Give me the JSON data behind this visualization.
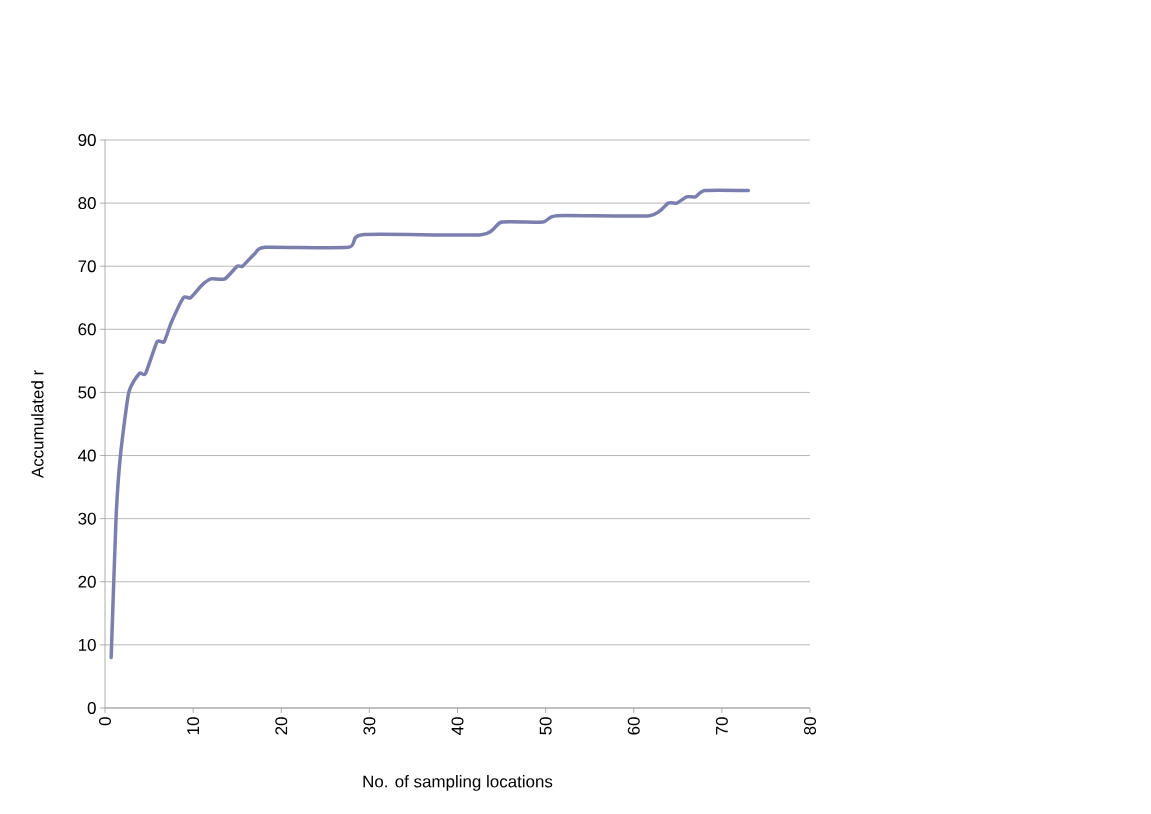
{
  "chart_data": {
    "type": "line",
    "xlabel": "No. of sampling locations",
    "ylabel": "Accumulated r",
    "x": [
      0.7,
      1.25,
      1.75,
      2.7,
      3.9,
      4.6,
      5.9,
      6.7,
      7.5,
      8.9,
      9.7,
      11,
      12,
      13.6,
      15,
      15.6,
      17,
      18.2,
      27.6,
      29.2,
      42.7,
      45,
      49.7,
      51.3,
      61.8,
      63.9,
      64.9,
      66,
      67,
      68.1,
      73
    ],
    "series": [
      {
        "color": "#7b7fae",
        "values": [
          8,
          30,
          40,
          50,
          53,
          53,
          58,
          58,
          61,
          65,
          65,
          67,
          68,
          68,
          70,
          70,
          72,
          73,
          73,
          75,
          75,
          77,
          77,
          78,
          78,
          80,
          80,
          81,
          81,
          82,
          82
        ]
      }
    ],
    "xlim": [
      0,
      80
    ],
    "ylim": [
      0,
      90
    ],
    "xticks": [
      0,
      10,
      20,
      30,
      40,
      50,
      60,
      70,
      80
    ],
    "yticks": [
      0,
      10,
      20,
      30,
      40,
      50,
      60,
      70,
      80,
      90
    ],
    "grid": "y",
    "marker": "none",
    "line_style": "solid"
  }
}
